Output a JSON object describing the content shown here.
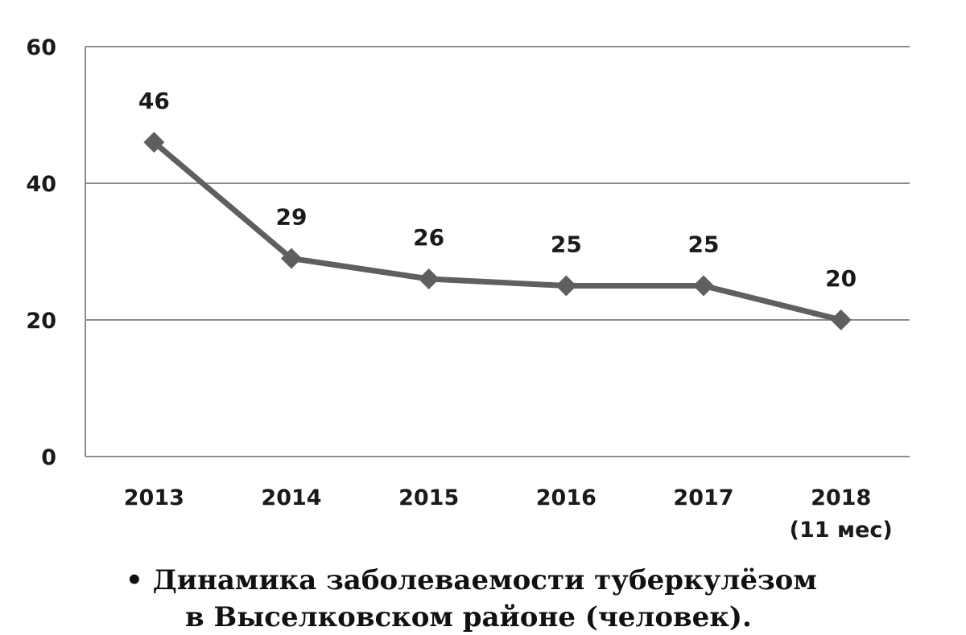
{
  "chart_data": {
    "type": "line",
    "categories": [
      [
        "2013"
      ],
      [
        "2014"
      ],
      [
        "2015"
      ],
      [
        "2016"
      ],
      [
        "2017"
      ],
      [
        "2018",
        "(11 мес)"
      ]
    ],
    "values": [
      46,
      29,
      26,
      25,
      25,
      20
    ],
    "data_labels": [
      "46",
      "29",
      "26",
      "25",
      "25",
      "20"
    ],
    "y_ticks": [
      0,
      20,
      40,
      60
    ],
    "ylim": [
      0,
      60
    ],
    "grid": true,
    "marker": "diamond",
    "colors": {
      "line": "#5f5f5f",
      "grid": "#8c8c8c",
      "axis": "#8c8c8c"
    }
  },
  "caption": {
    "line1": "• Динамика заболеваемости туберкулёзом",
    "line2": "в Выселковском районе (человек)."
  }
}
